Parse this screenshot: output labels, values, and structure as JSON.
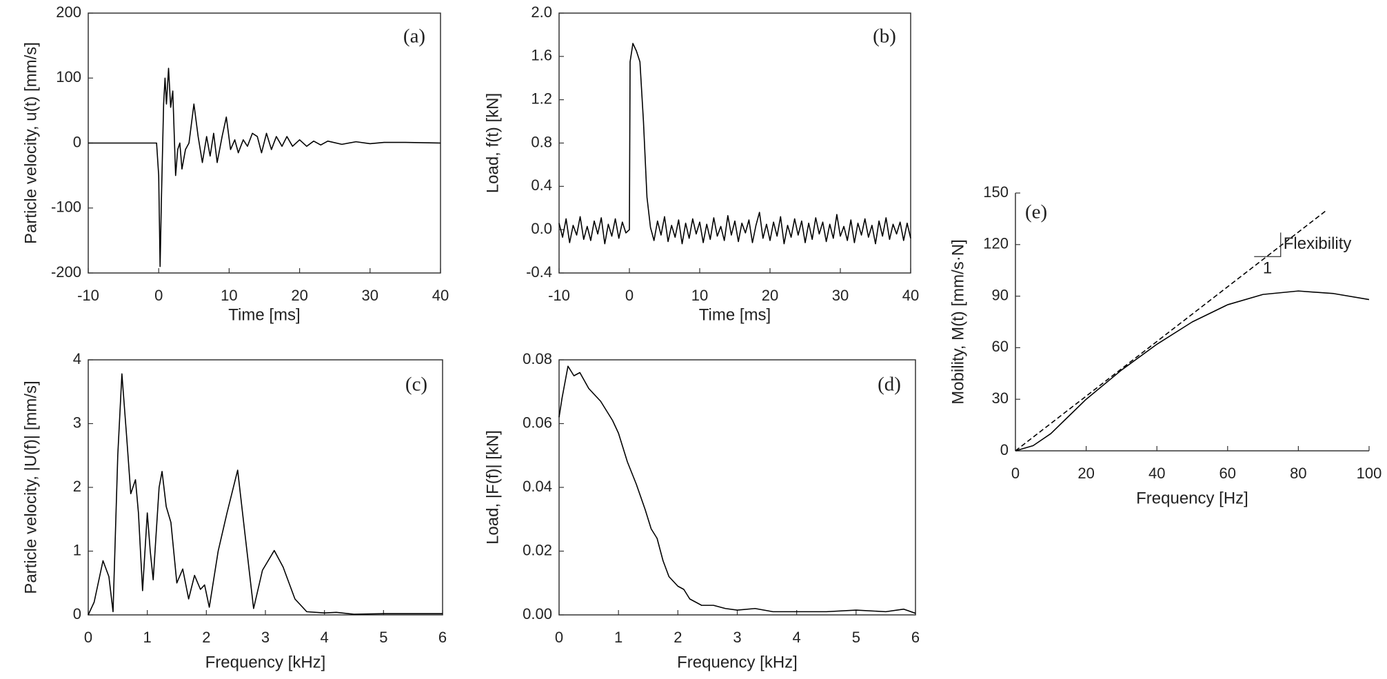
{
  "chart_data": [
    {
      "type": "line",
      "panel_label": "(a)",
      "xlabel": "Time [ms]",
      "ylabel": "Particle velocity, u(t) [mm/s]",
      "frame": true,
      "xlim": [
        -10,
        40
      ],
      "xticks": [
        -10,
        0,
        10,
        20,
        30,
        40
      ],
      "ylim": [
        -200,
        200
      ],
      "yticks": [
        -200,
        -100,
        0,
        100,
        200
      ],
      "x": [
        -10,
        -0.3,
        0,
        0.2,
        0.4,
        0.7,
        0.9,
        1.1,
        1.4,
        1.7,
        2.0,
        2.4,
        2.7,
        3.0,
        3.3,
        3.8,
        4.3,
        5.0,
        5.6,
        6.2,
        6.8,
        7.3,
        7.8,
        8.3,
        9.0,
        9.6,
        10.2,
        10.8,
        11.3,
        12,
        12.6,
        13.3,
        14,
        14.6,
        15.3,
        16,
        16.7,
        17.5,
        18.2,
        19,
        20,
        21,
        22,
        23,
        24,
        26,
        28,
        30,
        32,
        35,
        40
      ],
      "series": [
        {
          "color": "#000000",
          "values": [
            0,
            0,
            -50,
            -190,
            -80,
            60,
            100,
            60,
            115,
            55,
            80,
            -50,
            -10,
            0,
            -40,
            -10,
            0,
            60,
            10,
            -30,
            10,
            -20,
            15,
            -30,
            10,
            40,
            -10,
            5,
            -15,
            5,
            -5,
            15,
            10,
            -15,
            15,
            -10,
            10,
            -5,
            10,
            -5,
            5,
            -5,
            3,
            -3,
            3,
            -2,
            2,
            -1,
            1,
            1,
            0
          ]
        }
      ]
    },
    {
      "type": "line",
      "panel_label": "(b)",
      "xlabel": "Time [ms]",
      "ylabel": "Load, f(t) [kN]",
      "frame": true,
      "xlim": [
        -10,
        40
      ],
      "xticks": [
        -10,
        0,
        10,
        20,
        30,
        40
      ],
      "ylim": [
        -0.4,
        2.0
      ],
      "yticks": [
        -0.4,
        {
          "value": 0,
          "label": "0.0"
        },
        0.4,
        0.8,
        1.2,
        1.6,
        {
          "value": 2,
          "label": "2.0"
        }
      ],
      "x": [
        -10,
        -9.5,
        -9,
        -8.5,
        -8,
        -7.5,
        -7,
        -6.5,
        -6,
        -5.5,
        -5,
        -4.5,
        -4,
        -3.5,
        -3,
        -2.5,
        -2,
        -1.5,
        -1,
        -0.5,
        0,
        0.1,
        0.5,
        1,
        1.5,
        2,
        2.5,
        3,
        3.5,
        4,
        4.5,
        5,
        5.5,
        6,
        6.5,
        7,
        7.5,
        8,
        8.5,
        9,
        9.5,
        10,
        10.5,
        11,
        11.5,
        12,
        12.5,
        13,
        13.5,
        14,
        14.5,
        15,
        15.5,
        16,
        16.5,
        17,
        17.5,
        18,
        18.5,
        19,
        19.5,
        20,
        20.5,
        21,
        21.5,
        22,
        22.5,
        23,
        23.5,
        24,
        24.5,
        25,
        25.5,
        26,
        26.5,
        27,
        27.5,
        28,
        28.5,
        29,
        29.5,
        30,
        30.5,
        31,
        31.5,
        32,
        32.5,
        33,
        33.5,
        34,
        34.5,
        35,
        35.5,
        36,
        36.5,
        37,
        37.5,
        38,
        38.5,
        39,
        39.5,
        40
      ],
      "series": [
        {
          "color": "#000000",
          "values": [
            0.06,
            -0.07,
            0.1,
            -0.12,
            0.04,
            -0.05,
            0.12,
            -0.09,
            0.03,
            -0.1,
            0.08,
            -0.04,
            0.11,
            -0.13,
            0.05,
            -0.06,
            0.1,
            -0.08,
            0.07,
            -0.03,
            0.0,
            1.55,
            1.72,
            1.65,
            1.55,
            1.0,
            0.3,
            0.02,
            -0.1,
            0.08,
            -0.05,
            0.12,
            -0.11,
            0.04,
            -0.07,
            0.09,
            -0.13,
            0.06,
            -0.08,
            0.1,
            -0.04,
            0.07,
            -0.12,
            0.05,
            -0.09,
            0.11,
            -0.06,
            0.03,
            -0.1,
            0.13,
            -0.05,
            0.08,
            -0.11,
            0.06,
            -0.03,
            0.09,
            -0.12,
            0.04,
            0.16,
            -0.08,
            0.05,
            -0.1,
            0.07,
            -0.06,
            0.12,
            -0.13,
            0.04,
            -0.07,
            0.1,
            -0.05,
            0.08,
            -0.12,
            0.06,
            -0.09,
            0.11,
            -0.04,
            0.07,
            -0.11,
            0.05,
            -0.08,
            0.14,
            -0.06,
            0.03,
            -0.1,
            0.09,
            -0.12,
            0.06,
            -0.05,
            0.1,
            -0.07,
            0.04,
            -0.13,
            0.08,
            -0.06,
            0.11,
            -0.09,
            0.05,
            -0.04,
            0.07,
            -0.1,
            0.06,
            -0.08
          ]
        }
      ]
    },
    {
      "type": "line",
      "panel_label": "(c)",
      "xlabel": "Frequency [kHz]",
      "ylabel": "Particle velocity, |U(f)| [mm/s]",
      "frame": true,
      "xlim": [
        0,
        6
      ],
      "xticks": [
        0,
        1,
        2,
        3,
        4,
        5,
        6
      ],
      "ylim": [
        0,
        4
      ],
      "yticks": [
        0,
        1,
        2,
        3,
        4
      ],
      "x": [
        0,
        0.1,
        0.25,
        0.35,
        0.42,
        0.5,
        0.57,
        0.65,
        0.72,
        0.8,
        0.85,
        0.92,
        1.0,
        1.05,
        1.1,
        1.2,
        1.25,
        1.32,
        1.4,
        1.5,
        1.6,
        1.7,
        1.8,
        1.9,
        1.97,
        2.05,
        2.2,
        2.35,
        2.53,
        2.65,
        2.8,
        2.95,
        3.15,
        3.3,
        3.5,
        3.7,
        4.0,
        4.2,
        4.5,
        5,
        6
      ],
      "series": [
        {
          "color": "#000000",
          "values": [
            0,
            0.2,
            0.85,
            0.6,
            0.05,
            2.5,
            3.78,
            2.8,
            1.9,
            2.12,
            1.6,
            0.38,
            1.6,
            1.0,
            0.55,
            2.0,
            2.25,
            1.7,
            1.45,
            0.5,
            0.72,
            0.25,
            0.62,
            0.4,
            0.47,
            0.12,
            1.0,
            1.6,
            2.27,
            1.3,
            0.1,
            0.7,
            1.01,
            0.75,
            0.25,
            0.05,
            0.03,
            0.04,
            0.01,
            0.02,
            0.02
          ]
        }
      ]
    },
    {
      "type": "line",
      "panel_label": "(d)",
      "xlabel": "Frequency [kHz]",
      "ylabel": "Load, |F(f)| [kN]",
      "frame": true,
      "xlim": [
        0,
        6
      ],
      "xticks": [
        0,
        1,
        2,
        3,
        4,
        5,
        6
      ],
      "ylim": [
        0,
        0.08
      ],
      "yticks": [
        {
          "value": 0,
          "label": "0.00"
        },
        0.02,
        0.04,
        0.06,
        0.08
      ],
      "x": [
        0,
        0.05,
        0.15,
        0.25,
        0.35,
        0.5,
        0.7,
        0.9,
        1.0,
        1.15,
        1.3,
        1.45,
        1.55,
        1.65,
        1.75,
        1.85,
        2.0,
        2.1,
        2.2,
        2.4,
        2.6,
        2.8,
        3.0,
        3.3,
        3.6,
        4,
        4.5,
        5,
        5.5,
        5.8,
        6
      ],
      "series": [
        {
          "color": "#000000",
          "values": [
            0.062,
            0.068,
            0.078,
            0.075,
            0.076,
            0.071,
            0.067,
            0.061,
            0.057,
            0.048,
            0.041,
            0.033,
            0.027,
            0.024,
            0.017,
            0.012,
            0.009,
            0.008,
            0.005,
            0.003,
            0.003,
            0.002,
            0.0015,
            0.002,
            0.001,
            0.001,
            0.001,
            0.0015,
            0.001,
            0.0018,
            0.0005
          ]
        }
      ]
    },
    {
      "type": "line",
      "panel_label": "(e)",
      "xlabel": "Frequency [Hz]",
      "ylabel": "Mobility, M(t) [mm/s·N]",
      "frame": false,
      "xlim": [
        0,
        100
      ],
      "xticks": [
        0,
        20,
        40,
        60,
        80,
        100
      ],
      "ylim": [
        0,
        150
      ],
      "yticks": [
        0,
        30,
        60,
        90,
        120,
        150
      ],
      "annotations": [
        "Flexibility",
        "1"
      ],
      "series": [
        {
          "color": "#000000",
          "line_style": "solid",
          "x": [
            0,
            5,
            10,
            15,
            20,
            30,
            40,
            50,
            60,
            70,
            80,
            90,
            100
          ],
          "values": [
            0,
            3,
            10,
            20,
            30,
            47,
            62,
            75,
            85,
            91,
            93,
            91.5,
            88
          ]
        },
        {
          "color": "#000000",
          "line_style": "dashed",
          "x": [
            0,
            88
          ],
          "values": [
            0,
            140
          ]
        }
      ]
    }
  ]
}
